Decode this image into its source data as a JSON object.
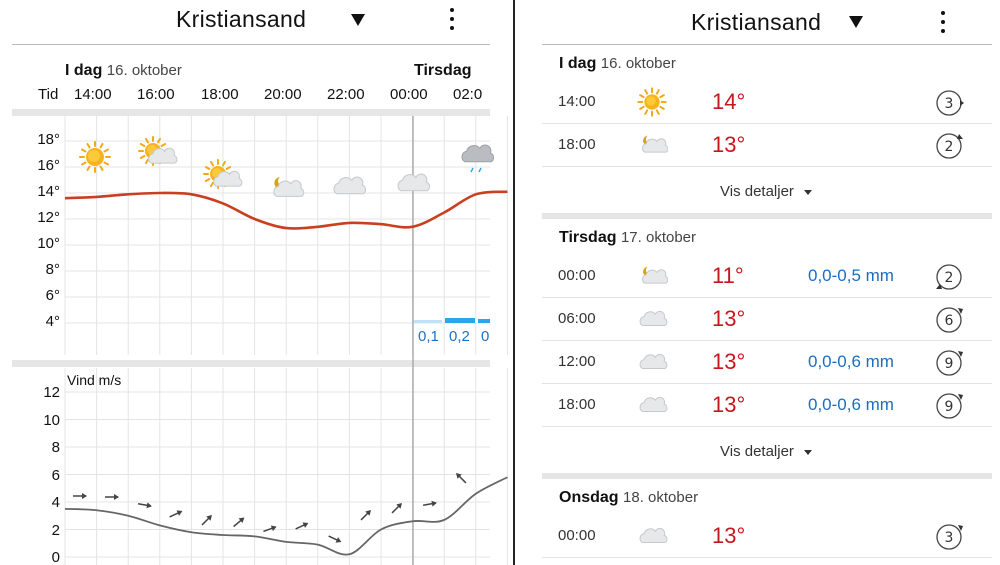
{
  "left": {
    "header": {
      "title": "Kristiansand"
    },
    "days": [
      {
        "name": "I dag",
        "date": "16. oktober"
      },
      {
        "name": "Tirsdag",
        "date": ""
      }
    ],
    "time_axis_label": "Tid",
    "times": [
      "14:00",
      "16:00",
      "18:00",
      "20:00",
      "22:00",
      "00:00",
      "02:0"
    ],
    "chart_data": [
      {
        "type": "line",
        "x": [
          "13:00",
          "14:00",
          "15:00",
          "16:00",
          "17:00",
          "18:00",
          "19:00",
          "20:00",
          "21:00",
          "22:00",
          "23:00",
          "00:00",
          "01:00",
          "02:00",
          "03:00"
        ],
        "series": [
          {
            "values": [
              13.6,
              13.7,
              13.9,
              14.0,
              13.9,
              13.2,
              12.0,
              11.3,
              11.4,
              11.7,
              11.6,
              11.4,
              12.5,
              13.9,
              14.1
            ]
          }
        ],
        "y_ticks": [
          "18°",
          "16°",
          "14°",
          "12°",
          "10°",
          "8°",
          "6°",
          "4°"
        ],
        "ylim": [
          3,
          19
        ],
        "symbols": [
          "sun-icon",
          "sun-icon",
          "partly-sunny-icon",
          "partly-sunny-icon",
          "moon-cloud-icon",
          "cloud-icon",
          "cloud-icon",
          "rain-cloud-icon"
        ],
        "precipitation": {
          "values": [
            "0,1",
            "0,2",
            "0"
          ],
          "unit": "mm"
        },
        "grid": true
      },
      {
        "type": "line",
        "title": "Vind m/s",
        "x": [
          "13:00",
          "14:00",
          "15:00",
          "16:00",
          "17:00",
          "18:00",
          "19:00",
          "20:00",
          "21:00",
          "22:00",
          "23:00",
          "00:00",
          "01:00",
          "02:00",
          "03:00"
        ],
        "series": [
          {
            "values": [
              3.5,
              3.4,
              3.0,
              2.3,
              1.8,
              1.6,
              1.5,
              1.1,
              0.9,
              0.2,
              2.0,
              2.6,
              2.7,
              4.6,
              5.8
            ]
          }
        ],
        "y_ticks": [
          "12",
          "10",
          "8",
          "6",
          "4",
          "2",
          "0"
        ],
        "ylim": [
          0,
          13
        ],
        "grid": true
      }
    ]
  },
  "right": {
    "header": {
      "title": "Kristiansand"
    },
    "details_label": "Vis detaljer",
    "days": [
      {
        "name": "I dag",
        "date": "16. oktober",
        "rows": [
          {
            "time": "14:00",
            "symbol": "sun-icon",
            "temp": "14°",
            "precip": "",
            "wind": "3"
          },
          {
            "time": "18:00",
            "symbol": "moon-cloud-icon",
            "temp": "13°",
            "precip": "",
            "wind": "2"
          }
        ]
      },
      {
        "name": "Tirsdag",
        "date": "17. oktober",
        "rows": [
          {
            "time": "00:00",
            "symbol": "moon-cloud-icon",
            "temp": "11°",
            "precip": "0,0-0,5 mm",
            "wind": "2"
          },
          {
            "time": "06:00",
            "symbol": "cloud-icon",
            "temp": "13°",
            "precip": "",
            "wind": "6"
          },
          {
            "time": "12:00",
            "symbol": "cloud-icon",
            "temp": "13°",
            "precip": "0,0-0,6 mm",
            "wind": "9"
          },
          {
            "time": "18:00",
            "symbol": "cloud-icon",
            "temp": "13°",
            "precip": "0,0-0,6 mm",
            "wind": "9"
          }
        ]
      },
      {
        "name": "Onsdag",
        "date": "18. oktober",
        "rows": [
          {
            "time": "00:00",
            "symbol": "cloud-icon",
            "temp": "13°",
            "precip": "",
            "wind": "3"
          }
        ]
      }
    ]
  },
  "colors": {
    "temperature_line": "#c8401f",
    "temperature_text": "#c8161d",
    "precip_bar": "#29a8e6",
    "precip_text": "#1a6ec0",
    "wind_line": "#666666"
  }
}
